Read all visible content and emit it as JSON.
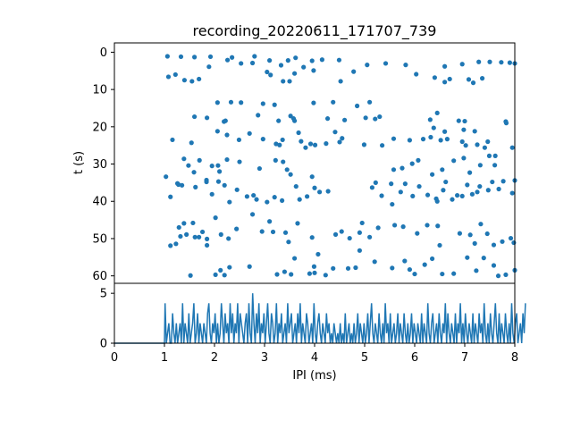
{
  "chart_data": {
    "title": "recording_20220611_171707_739",
    "raster": {
      "type": "scatter",
      "xlabel": "",
      "ylabel": "t (s)",
      "xlim": [
        0,
        8
      ],
      "ylim": [
        62,
        -2.5
      ],
      "yticks": [
        0,
        10,
        20,
        30,
        40,
        50,
        60
      ],
      "color": "#1f77b4",
      "x_range_of_points": [
        1.0,
        8.0
      ],
      "points": [
        [
          1.06,
          1.1
        ],
        [
          1.33,
          1.2
        ],
        [
          1.6,
          1.3
        ],
        [
          1.89,
          3.9
        ],
        [
          1.92,
          1.2
        ],
        [
          2.26,
          2.1
        ],
        [
          2.35,
          1.4
        ],
        [
          2.53,
          3.0
        ],
        [
          2.76,
          2.9
        ],
        [
          2.8,
          1.1
        ],
        [
          3.1,
          2.2
        ],
        [
          3.33,
          3.5
        ],
        [
          3.47,
          2.2
        ],
        [
          3.62,
          1.5
        ],
        [
          3.78,
          4.0
        ],
        [
          3.95,
          2.3
        ],
        [
          4.15,
          2.0
        ],
        [
          4.49,
          2.1
        ],
        [
          4.78,
          5.2
        ],
        [
          5.05,
          3.4
        ],
        [
          5.42,
          3.0
        ],
        [
          5.82,
          3.4
        ],
        [
          6.03,
          5.9
        ],
        [
          6.6,
          3.8
        ],
        [
          6.95,
          3.2
        ],
        [
          7.28,
          2.6
        ],
        [
          7.5,
          2.6
        ],
        [
          7.73,
          2.7
        ],
        [
          7.9,
          2.8
        ],
        [
          8.0,
          3.0
        ],
        [
          1.08,
          6.6
        ],
        [
          1.22,
          6.0
        ],
        [
          1.4,
          7.5
        ],
        [
          1.55,
          7.8
        ],
        [
          1.69,
          7.2
        ],
        [
          3.05,
          5.3
        ],
        [
          3.12,
          6.1
        ],
        [
          3.37,
          7.8
        ],
        [
          3.5,
          7.8
        ],
        [
          3.6,
          5.7
        ],
        [
          3.98,
          4.9
        ],
        [
          4.52,
          7.8
        ],
        [
          6.4,
          6.8
        ],
        [
          6.6,
          8.0
        ],
        [
          6.7,
          7.2
        ],
        [
          7.08,
          7.3
        ],
        [
          7.17,
          8.2
        ],
        [
          7.35,
          7.0
        ],
        [
          1.6,
          17.3
        ],
        [
          1.85,
          17.6
        ],
        [
          2.06,
          13.5
        ],
        [
          2.19,
          18.6
        ],
        [
          2.22,
          18.4
        ],
        [
          2.33,
          13.4
        ],
        [
          2.53,
          13.5
        ],
        [
          2.87,
          16.9
        ],
        [
          2.97,
          13.8
        ],
        [
          3.2,
          14.1
        ],
        [
          3.28,
          18.4
        ],
        [
          3.52,
          17.1
        ],
        [
          3.58,
          17.8
        ],
        [
          3.6,
          18.4
        ],
        [
          3.98,
          13.6
        ],
        [
          4.26,
          17.8
        ],
        [
          4.37,
          13.4
        ],
        [
          4.6,
          18.2
        ],
        [
          4.85,
          14.4
        ],
        [
          5.02,
          17.6
        ],
        [
          5.1,
          13.4
        ],
        [
          5.21,
          17.9
        ],
        [
          5.3,
          17.3
        ],
        [
          6.31,
          18.1
        ],
        [
          6.45,
          16.3
        ],
        [
          6.88,
          18.4
        ],
        [
          7.0,
          18.5
        ],
        [
          7.82,
          18.6
        ],
        [
          7.83,
          19.0
        ],
        [
          1.16,
          23.5
        ],
        [
          1.54,
          24.3
        ],
        [
          2.06,
          21.2
        ],
        [
          2.25,
          22.2
        ],
        [
          2.49,
          23.5
        ],
        [
          2.7,
          21.8
        ],
        [
          2.97,
          23.3
        ],
        [
          3.23,
          24.6
        ],
        [
          3.3,
          24.9
        ],
        [
          3.36,
          23.5
        ],
        [
          3.68,
          21.6
        ],
        [
          3.73,
          23.9
        ],
        [
          3.82,
          25.6
        ],
        [
          3.92,
          24.6
        ],
        [
          4.01,
          24.9
        ],
        [
          4.23,
          24.5
        ],
        [
          4.41,
          21.4
        ],
        [
          4.5,
          24.1
        ],
        [
          4.55,
          23.1
        ],
        [
          4.99,
          24.8
        ],
        [
          5.35,
          25.0
        ],
        [
          5.58,
          23.2
        ],
        [
          5.9,
          23.6
        ],
        [
          6.17,
          23.3
        ],
        [
          6.32,
          22.8
        ],
        [
          6.52,
          23.6
        ],
        [
          6.65,
          23.3
        ],
        [
          6.98,
          20.8
        ],
        [
          7.02,
          25.0
        ],
        [
          7.25,
          24.8
        ],
        [
          7.4,
          25.6
        ],
        [
          7.46,
          24.0
        ],
        [
          7.95,
          25.6
        ],
        [
          7.2,
          21.2
        ],
        [
          6.38,
          20.3
        ],
        [
          6.6,
          21.3
        ],
        [
          6.95,
          24.0
        ],
        [
          1.03,
          33.4
        ],
        [
          1.28,
          35.5
        ],
        [
          1.39,
          28.6
        ],
        [
          1.48,
          30.4
        ],
        [
          1.59,
          32.2
        ],
        [
          1.7,
          29.0
        ],
        [
          1.84,
          34.3
        ],
        [
          1.95,
          30.5
        ],
        [
          2.07,
          30.4
        ],
        [
          2.1,
          32.0
        ],
        [
          2.25,
          28.8
        ],
        [
          2.5,
          29.4
        ],
        [
          2.9,
          31.2
        ],
        [
          3.22,
          29.0
        ],
        [
          3.37,
          29.4
        ],
        [
          3.45,
          31.5
        ],
        [
          3.52,
          32.8
        ],
        [
          3.95,
          33.4
        ],
        [
          5.58,
          31.5
        ],
        [
          5.75,
          31.1
        ],
        [
          5.95,
          29.9
        ],
        [
          6.07,
          29.0
        ],
        [
          6.35,
          32.8
        ],
        [
          6.55,
          31.5
        ],
        [
          6.78,
          29.1
        ],
        [
          7.1,
          32.3
        ],
        [
          7.31,
          30.3
        ],
        [
          7.49,
          27.8
        ],
        [
          7.61,
          27.8
        ],
        [
          7.6,
          30.3
        ],
        [
          6.98,
          28.4
        ],
        [
          1.12,
          38.8
        ],
        [
          1.26,
          35.2
        ],
        [
          1.35,
          35.7
        ],
        [
          1.62,
          36.2
        ],
        [
          1.84,
          34.8
        ],
        [
          1.95,
          38.1
        ],
        [
          2.08,
          34.7
        ],
        [
          2.3,
          40.2
        ],
        [
          2.45,
          36.9
        ],
        [
          2.65,
          38.7
        ],
        [
          2.78,
          38.4
        ],
        [
          2.84,
          39.5
        ],
        [
          3.05,
          40.2
        ],
        [
          3.2,
          38.9
        ],
        [
          3.35,
          39.8
        ],
        [
          3.63,
          36.0
        ],
        [
          3.7,
          39.5
        ],
        [
          3.85,
          38.7
        ],
        [
          4.0,
          36.4
        ],
        [
          4.1,
          37.5
        ],
        [
          4.27,
          37.3
        ],
        [
          5.15,
          36.3
        ],
        [
          5.22,
          35.0
        ],
        [
          5.34,
          38.5
        ],
        [
          5.53,
          35.3
        ],
        [
          5.72,
          37.5
        ],
        [
          5.81,
          35.3
        ],
        [
          5.96,
          38.6
        ],
        [
          6.09,
          36.0
        ],
        [
          6.26,
          38.3
        ],
        [
          6.43,
          39.3
        ],
        [
          6.57,
          37.0
        ],
        [
          6.75,
          39.5
        ],
        [
          6.85,
          38.4
        ],
        [
          6.95,
          38.6
        ],
        [
          7.05,
          35.6
        ],
        [
          7.15,
          38.1
        ],
        [
          7.25,
          37.5
        ],
        [
          7.3,
          36.0
        ],
        [
          7.47,
          37.0
        ],
        [
          7.68,
          36.7
        ],
        [
          7.95,
          37.8
        ],
        [
          8.0,
          34.4
        ],
        [
          6.62,
          34.8
        ],
        [
          7.77,
          34.6
        ],
        [
          5.55,
          40.8
        ],
        [
          6.45,
          40.0
        ],
        [
          7.55,
          34.8
        ],
        [
          2.2,
          35.7
        ],
        [
          1.12,
          51.9
        ],
        [
          1.29,
          47.0
        ],
        [
          1.39,
          45.9
        ],
        [
          1.57,
          45.8
        ],
        [
          1.69,
          49.6
        ],
        [
          1.85,
          50.1
        ],
        [
          2.13,
          48.9
        ],
        [
          2.44,
          47.4
        ],
        [
          2.76,
          43.5
        ],
        [
          2.95,
          48.1
        ],
        [
          3.1,
          45.4
        ],
        [
          3.42,
          48.4
        ],
        [
          3.66,
          45.9
        ],
        [
          3.95,
          49.7
        ],
        [
          4.42,
          48.9
        ],
        [
          4.54,
          48.1
        ],
        [
          4.7,
          49.9
        ],
        [
          4.9,
          48.4
        ],
        [
          5.1,
          49.6
        ],
        [
          5.27,
          47.1
        ],
        [
          5.6,
          46.4
        ],
        [
          5.77,
          46.8
        ],
        [
          6.05,
          48.6
        ],
        [
          6.25,
          46.4
        ],
        [
          6.46,
          46.6
        ],
        [
          6.9,
          48.6
        ],
        [
          7.11,
          49.0
        ],
        [
          7.32,
          46.1
        ],
        [
          7.45,
          48.7
        ],
        [
          7.75,
          50.8
        ],
        [
          7.92,
          49.9
        ],
        [
          7.98,
          51.1
        ],
        [
          6.5,
          51.8
        ],
        [
          7.2,
          51.3
        ],
        [
          7.58,
          51.7
        ],
        [
          1.23,
          51.4
        ],
        [
          1.32,
          49.4
        ],
        [
          1.44,
          48.9
        ],
        [
          1.61,
          49.6
        ],
        [
          1.76,
          48.2
        ],
        [
          2.02,
          44.4
        ],
        [
          2.28,
          50.0
        ],
        [
          3.17,
          48.2
        ],
        [
          3.48,
          50.9
        ],
        [
          4.95,
          45.8
        ],
        [
          1.52,
          59.9
        ],
        [
          1.85,
          51.8
        ],
        [
          2.02,
          59.7
        ],
        [
          2.12,
          58.5
        ],
        [
          2.2,
          59.8
        ],
        [
          2.3,
          57.7
        ],
        [
          2.7,
          57.5
        ],
        [
          3.25,
          59.6
        ],
        [
          3.4,
          58.9
        ],
        [
          3.53,
          59.6
        ],
        [
          3.6,
          55.3
        ],
        [
          3.99,
          57.5
        ],
        [
          4.07,
          54.2
        ],
        [
          4.22,
          59.8
        ],
        [
          4.37,
          58.0
        ],
        [
          4.67,
          58.0
        ],
        [
          4.82,
          57.8
        ],
        [
          5.2,
          56.2
        ],
        [
          5.55,
          57.9
        ],
        [
          5.8,
          56.0
        ],
        [
          5.9,
          58.3
        ],
        [
          6.2,
          57.0
        ],
        [
          6.35,
          55.4
        ],
        [
          6.55,
          59.5
        ],
        [
          6.78,
          59.4
        ],
        [
          7.05,
          55.1
        ],
        [
          7.23,
          58.6
        ],
        [
          7.38,
          55.2
        ],
        [
          7.67,
          60.0
        ],
        [
          7.82,
          59.7
        ],
        [
          8.0,
          58.5
        ],
        [
          7.58,
          57.2
        ],
        [
          4.0,
          59.2
        ],
        [
          6.0,
          59.5
        ],
        [
          3.9,
          59.4
        ],
        [
          4.9,
          53.2
        ]
      ]
    },
    "histogram": {
      "type": "line",
      "xlabel": "IPI (ms)",
      "ylabel": "",
      "xlim": [
        0,
        8
      ],
      "ylim": [
        0,
        6
      ],
      "xticks": [
        0,
        1,
        2,
        3,
        4,
        5,
        6,
        7,
        8
      ],
      "yticks": [
        0,
        5
      ],
      "color": "#1f77b4",
      "bin_start": 1.0,
      "bin_width": 0.025,
      "counts": [
        4,
        0,
        1,
        2,
        0,
        0,
        3,
        1,
        0,
        2,
        0,
        1,
        2,
        0,
        4,
        0,
        2,
        1,
        0,
        3,
        0,
        1,
        2,
        4,
        0,
        1,
        3,
        0,
        2,
        1,
        0,
        2,
        1,
        0,
        3,
        4,
        1,
        0,
        2,
        1,
        3,
        0,
        2,
        0,
        1,
        4,
        2,
        0,
        3,
        1,
        2,
        0,
        4,
        1,
        3,
        0,
        2,
        1,
        4,
        0,
        3,
        2,
        1,
        0,
        2,
        3,
        0,
        4,
        1,
        0,
        5,
        2,
        0,
        3,
        1,
        4,
        0,
        2,
        1,
        3,
        0,
        2,
        4,
        1,
        0,
        3,
        2,
        0,
        1,
        4,
        0,
        2,
        1,
        3,
        0,
        1,
        2,
        0,
        4,
        1,
        2,
        3,
        0,
        1,
        2,
        0,
        3,
        1,
        4,
        0,
        2,
        1,
        0,
        3,
        2,
        0,
        1,
        2,
        0,
        4,
        1,
        0,
        2,
        3,
        1,
        0,
        2,
        1,
        0,
        3,
        1,
        2,
        0,
        1,
        0,
        2,
        1,
        0,
        1,
        0,
        2,
        0,
        1,
        0,
        3,
        0,
        1,
        2,
        0,
        1,
        0,
        2,
        0,
        1,
        3,
        0,
        2,
        1,
        0,
        2,
        0,
        1,
        3,
        0,
        2,
        4,
        1,
        0,
        2,
        1,
        0,
        3,
        1,
        0,
        2,
        0,
        4,
        1,
        2,
        0,
        3,
        0,
        1,
        2,
        0,
        1,
        3,
        0,
        2,
        1,
        0,
        3,
        1,
        0,
        2,
        0,
        1,
        3,
        0,
        2,
        1,
        0,
        2,
        1,
        0,
        3,
        0,
        2,
        1,
        0,
        4,
        1,
        0,
        2,
        3,
        0,
        1,
        2,
        0,
        3,
        1,
        0,
        2,
        1,
        4,
        0,
        3,
        1,
        0,
        2,
        1,
        0,
        3,
        0,
        2,
        1,
        4,
        0,
        2,
        0,
        3,
        1,
        0,
        2,
        1,
        0,
        3,
        0,
        2,
        1,
        0,
        3,
        1,
        2,
        0,
        4,
        1,
        0,
        2,
        0,
        3,
        1,
        0,
        2,
        4,
        1,
        0,
        3,
        0,
        2,
        1,
        0,
        3,
        1,
        0,
        2,
        0,
        4,
        1,
        0,
        2,
        3,
        0,
        1,
        2,
        0,
        3,
        1,
        4
      ]
    }
  }
}
